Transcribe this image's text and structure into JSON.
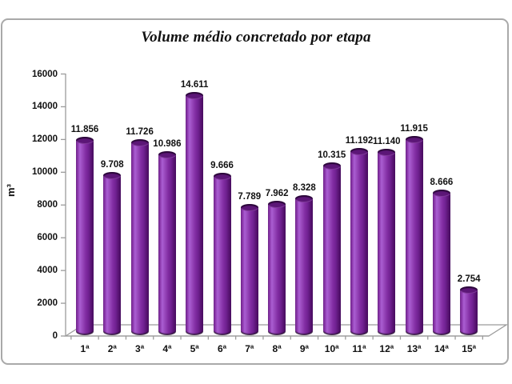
{
  "chart_data": {
    "type": "bar",
    "style": "3d-cylinder",
    "title": "Volume médio concretado por etapa",
    "ylabel": "m³",
    "xlabel": "",
    "categories": [
      "1ª",
      "2ª",
      "3ª",
      "4ª",
      "5ª",
      "6ª",
      "7ª",
      "8ª",
      "9ª",
      "10ª",
      "11ª",
      "12ª",
      "13ª",
      "14ª",
      "15ª"
    ],
    "values": [
      11856,
      9708,
      11726,
      10986,
      14611,
      9666,
      7789,
      7962,
      8328,
      10315,
      11192,
      11140,
      11915,
      8666,
      2754
    ],
    "value_labels": [
      "11.856",
      "9.708",
      "11.726",
      "10.986",
      "14.611",
      "9.666",
      "7.789",
      "7.962",
      "8.328",
      "10.315",
      "11.192",
      "11.140",
      "11.915",
      "8.666",
      "2.754"
    ],
    "ylim": [
      0,
      16000
    ],
    "yticks": [
      0,
      2000,
      4000,
      6000,
      8000,
      10000,
      12000,
      14000,
      16000
    ],
    "ytick_labels": [
      "0",
      "2000",
      "4000",
      "6000",
      "8000",
      "10000",
      "12000",
      "14000",
      "16000"
    ],
    "grid": false,
    "legend_position": "none",
    "bar_color": "#7f2a9e",
    "bar_highlight_color": "#aa5ed2",
    "bar_shadow_color": "#470c5e",
    "axis_color": "#9b9b9b",
    "frame_border_color": "#a9a9a9",
    "text_color": "#111111"
  }
}
